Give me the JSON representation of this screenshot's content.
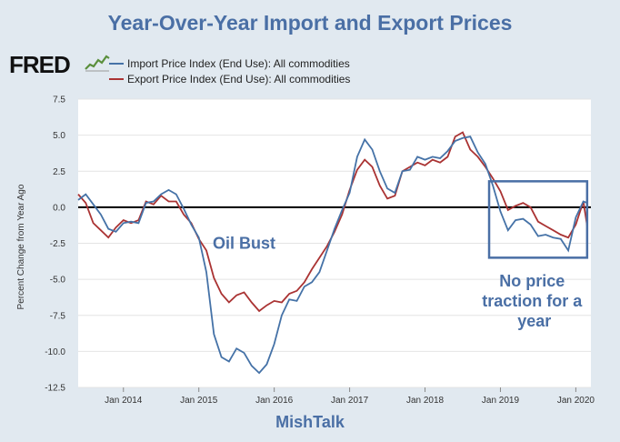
{
  "title": "Year-Over-Year Import and Export Prices",
  "logo_text": "FRED",
  "footer": "MishTalk",
  "colors": {
    "import": "#4572a7",
    "export": "#aa3333",
    "accent": "#4a6fa5",
    "zero_line": "#000000"
  },
  "chart_data": {
    "type": "line",
    "ylabel": "Percent Change from Year Ago",
    "ylim": [
      -12.5,
      7.5
    ],
    "yticks": [
      7.5,
      5.0,
      2.5,
      0.0,
      -2.5,
      -5.0,
      -7.5,
      -10.0,
      -12.5
    ],
    "ytick_labels": [
      "7.5",
      "5.0",
      "2.5",
      "0.0",
      "-2.5",
      "-5.0",
      "-7.5",
      "-10.0",
      "-12.5"
    ],
    "xlim": [
      2013.4,
      2020.2
    ],
    "xticks": [
      2014,
      2015,
      2016,
      2017,
      2018,
      2019,
      2020
    ],
    "xtick_labels": [
      "Jan 2014",
      "Jan 2015",
      "Jan 2016",
      "Jan 2017",
      "Jan 2018",
      "Jan 2019",
      "Jan 2020"
    ],
    "annotations": [
      {
        "text": "Oil Bust",
        "x": 2015.6,
        "y": -2.5
      },
      {
        "lines": [
          "No price",
          "traction for a",
          "year"
        ],
        "x": 2019.45,
        "y": -5.5
      }
    ],
    "highlight_box": {
      "x0": 2018.85,
      "x1": 2020.15,
      "y0": -3.5,
      "y1": 1.8
    },
    "series": [
      {
        "name": "Import Price Index (End Use): All commodities",
        "x": [
          2013.4,
          2013.5,
          2013.6,
          2013.7,
          2013.8,
          2013.9,
          2014.0,
          2014.1,
          2014.2,
          2014.3,
          2014.4,
          2014.5,
          2014.6,
          2014.7,
          2014.8,
          2014.9,
          2015.0,
          2015.1,
          2015.2,
          2015.3,
          2015.4,
          2015.5,
          2015.6,
          2015.7,
          2015.8,
          2015.9,
          2016.0,
          2016.1,
          2016.2,
          2016.3,
          2016.4,
          2016.5,
          2016.6,
          2016.7,
          2016.8,
          2016.9,
          2017.0,
          2017.1,
          2017.2,
          2017.3,
          2017.4,
          2017.5,
          2017.6,
          2017.7,
          2017.8,
          2017.9,
          2018.0,
          2018.1,
          2018.2,
          2018.3,
          2018.4,
          2018.5,
          2018.6,
          2018.7,
          2018.8,
          2018.9,
          2019.0,
          2019.1,
          2019.2,
          2019.3,
          2019.4,
          2019.5,
          2019.6,
          2019.7,
          2019.8,
          2019.9,
          2020.0,
          2020.1,
          2020.15
        ],
        "values": [
          0.5,
          0.9,
          0.2,
          -0.5,
          -1.5,
          -1.7,
          -1.1,
          -1.0,
          -1.1,
          0.3,
          0.4,
          0.9,
          1.2,
          0.9,
          -0.1,
          -1.2,
          -2.1,
          -4.5,
          -8.8,
          -10.4,
          -10.7,
          -9.8,
          -10.1,
          -11.0,
          -11.5,
          -10.9,
          -9.5,
          -7.5,
          -6.4,
          -6.5,
          -5.5,
          -5.2,
          -4.5,
          -3.0,
          -1.5,
          -0.2,
          1.0,
          3.5,
          4.7,
          4.0,
          2.5,
          1.3,
          1.0,
          2.5,
          2.6,
          3.5,
          3.3,
          3.5,
          3.4,
          3.9,
          4.6,
          4.8,
          4.9,
          3.8,
          3.0,
          1.5,
          -0.3,
          -1.6,
          -0.9,
          -0.8,
          -1.2,
          -2.0,
          -1.9,
          -2.1,
          -2.2,
          -3.0,
          -0.7,
          0.4,
          0.3
        ]
      },
      {
        "name": "Export Price Index (End Use): All commodities",
        "x": [
          2013.4,
          2013.5,
          2013.6,
          2013.7,
          2013.8,
          2013.9,
          2014.0,
          2014.1,
          2014.2,
          2014.3,
          2014.4,
          2014.5,
          2014.6,
          2014.7,
          2014.8,
          2014.9,
          2015.0,
          2015.1,
          2015.2,
          2015.3,
          2015.4,
          2015.5,
          2015.6,
          2015.7,
          2015.8,
          2015.9,
          2016.0,
          2016.1,
          2016.2,
          2016.3,
          2016.4,
          2016.5,
          2016.6,
          2016.7,
          2016.8,
          2016.9,
          2017.0,
          2017.1,
          2017.2,
          2017.3,
          2017.4,
          2017.5,
          2017.6,
          2017.7,
          2017.8,
          2017.9,
          2018.0,
          2018.1,
          2018.2,
          2018.3,
          2018.4,
          2018.5,
          2018.6,
          2018.7,
          2018.8,
          2018.9,
          2019.0,
          2019.1,
          2019.2,
          2019.3,
          2019.4,
          2019.5,
          2019.6,
          2019.7,
          2019.8,
          2019.9,
          2020.0,
          2020.1,
          2020.15
        ],
        "values": [
          0.9,
          0.3,
          -1.1,
          -1.6,
          -2.1,
          -1.4,
          -0.9,
          -1.1,
          -0.9,
          0.4,
          0.2,
          0.8,
          0.4,
          0.4,
          -0.5,
          -1.1,
          -2.2,
          -3.0,
          -4.9,
          -6.0,
          -6.6,
          -6.1,
          -5.9,
          -6.6,
          -7.2,
          -6.8,
          -6.5,
          -6.6,
          -6.0,
          -5.8,
          -5.2,
          -4.3,
          -3.5,
          -2.7,
          -1.7,
          -0.5,
          1.2,
          2.6,
          3.3,
          2.8,
          1.5,
          0.6,
          0.8,
          2.5,
          2.8,
          3.1,
          2.9,
          3.3,
          3.1,
          3.5,
          4.9,
          5.2,
          4.0,
          3.5,
          2.8,
          2.0,
          1.1,
          -0.2,
          0.1,
          0.3,
          0.0,
          -1.0,
          -1.3,
          -1.6,
          -1.9,
          -2.1,
          -1.2,
          0.4,
          -1.3
        ]
      }
    ]
  }
}
